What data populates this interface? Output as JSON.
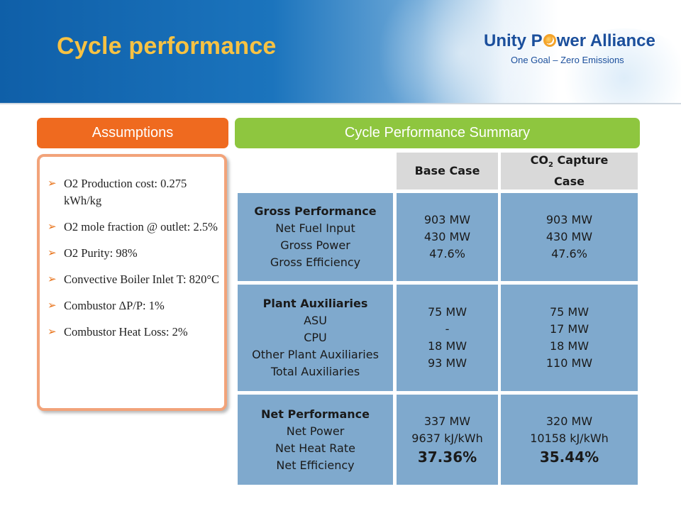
{
  "header": {
    "title": "Cycle performance",
    "logo": {
      "name_pre": "Unity P",
      "name_post": "wer Alliance",
      "tagline": "One Goal – Zero Emissions"
    }
  },
  "assumptions": {
    "header": "Assumptions",
    "items": [
      "O2 Production cost: 0.275 kWh/kg",
      "O2 mole fraction @ outlet: 2.5%",
      "O2 Purity: 98%",
      "Convective Boiler Inlet T: 820°C",
      "Combustor ΔP/P: 1%",
      "Combustor Heat Loss: 2%"
    ]
  },
  "summary": {
    "header": "Cycle Performance Summary",
    "col_base": "Base Case",
    "col_capture_pre": "CO",
    "col_capture_sub": "2",
    "col_capture_post": " Capture Case",
    "rows": [
      {
        "label_title": "Gross Performance",
        "label_lines": [
          "Net Fuel Input",
          "Gross Power",
          "Gross Efficiency"
        ],
        "base": [
          "903 MW",
          "430 MW",
          "47.6%"
        ],
        "capture": [
          "903 MW",
          "430 MW",
          "47.6%"
        ]
      },
      {
        "label_title": "Plant Auxiliaries",
        "label_lines": [
          "ASU",
          "CPU",
          "Other Plant Auxiliaries",
          "Total Auxiliaries"
        ],
        "base": [
          "75 MW",
          "-",
          "18 MW",
          "93 MW"
        ],
        "capture": [
          "75 MW",
          "17 MW",
          "18 MW",
          "110 MW"
        ]
      },
      {
        "label_title": "Net Performance",
        "label_lines": [
          "Net Power",
          "Net Heat Rate",
          "Net Efficiency"
        ],
        "base": [
          "337 MW",
          "9637 kJ/kWh"
        ],
        "base_emph": "37.36%",
        "capture": [
          "320 MW",
          "10158 kJ/kWh"
        ],
        "capture_emph": "35.44%"
      }
    ]
  },
  "colors": {
    "assumptions_header": "#ef6a1f",
    "summary_header": "#8ec63f",
    "table_header": "#d9d9d9",
    "table_body": "#7fa9cd",
    "title": "#f7c243"
  }
}
